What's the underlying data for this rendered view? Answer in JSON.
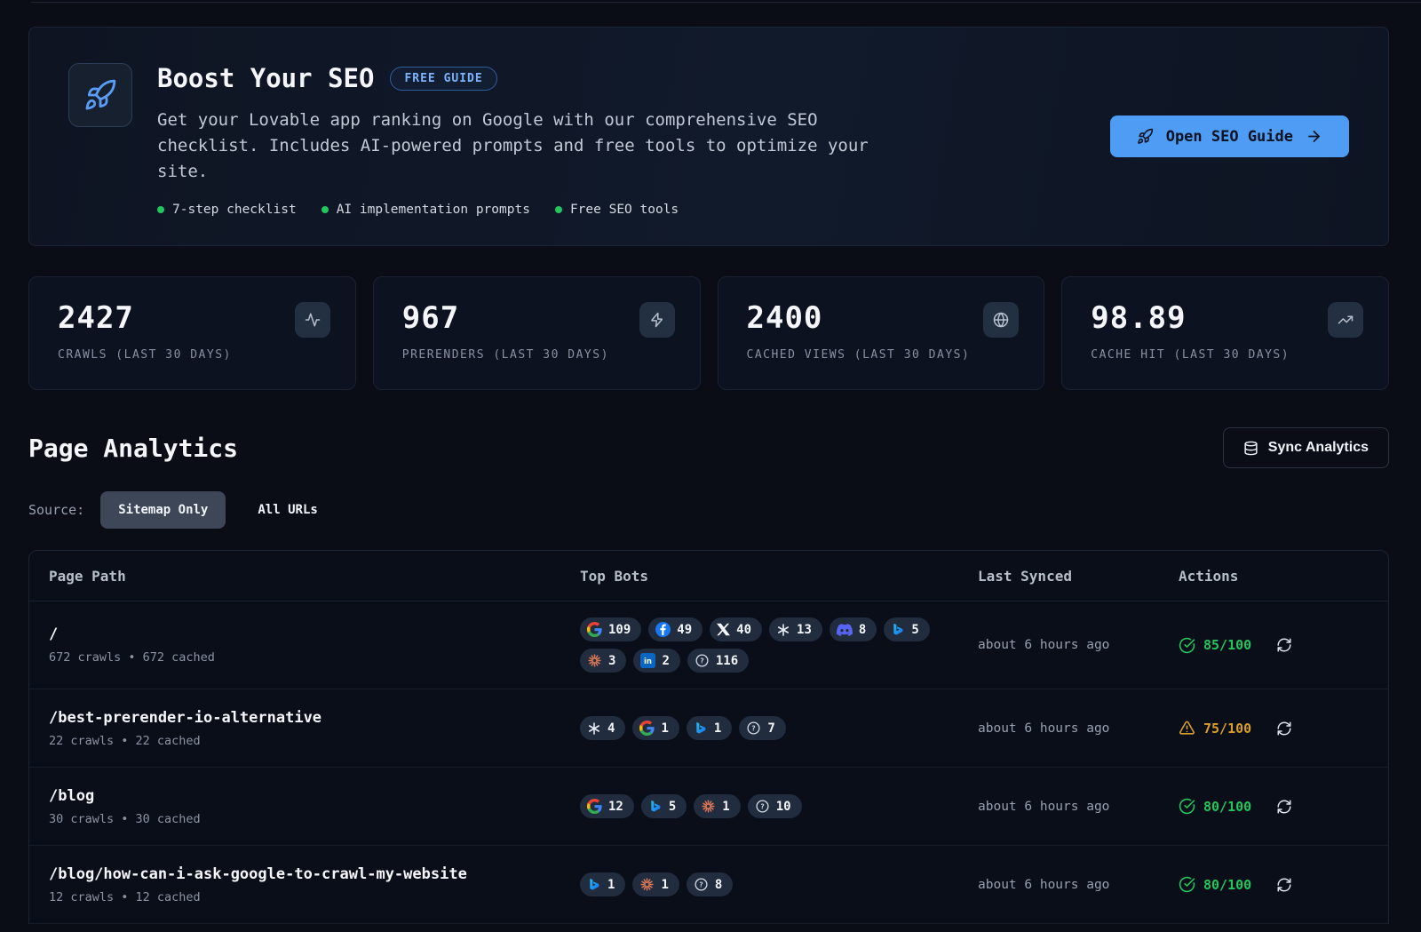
{
  "banner": {
    "title": "Boost Your SEO",
    "badge": "FREE GUIDE",
    "description": "Get your Lovable app ranking on Google with our comprehensive SEO checklist. Includes AI-powered prompts and free tools to optimize your site.",
    "features": [
      "7-step checklist",
      "AI implementation prompts",
      "Free SEO tools"
    ],
    "cta_label": "Open SEO Guide"
  },
  "stats": [
    {
      "value": "2427",
      "label": "CRAWLS (LAST 30 DAYS)",
      "icon": "activity-icon"
    },
    {
      "value": "967",
      "label": "PRERENDERS (LAST 30 DAYS)",
      "icon": "lightning-icon"
    },
    {
      "value": "2400",
      "label": "CACHED VIEWS (LAST 30 DAYS)",
      "icon": "globe-icon"
    },
    {
      "value": "98.89",
      "label": "CACHE HIT (LAST 30 DAYS)",
      "icon": "trending-up-icon"
    }
  ],
  "page_analytics": {
    "title": "Page Analytics",
    "sync_label": "Sync Analytics",
    "source_label": "Source:",
    "sources": [
      {
        "label": "Sitemap Only",
        "active": true
      },
      {
        "label": "All URLs",
        "active": false
      }
    ]
  },
  "table": {
    "columns": [
      "Page Path",
      "Top Bots",
      "Last Synced",
      "Actions"
    ],
    "rows": [
      {
        "path": "/",
        "meta": "672 crawls • 672 cached",
        "bots": [
          {
            "bot": "google",
            "count": "109"
          },
          {
            "bot": "facebook",
            "count": "49"
          },
          {
            "bot": "x",
            "count": "40"
          },
          {
            "bot": "openai",
            "count": "13"
          },
          {
            "bot": "discord",
            "count": "8"
          },
          {
            "bot": "bing",
            "count": "5"
          },
          {
            "bot": "claude",
            "count": "3"
          },
          {
            "bot": "linkedin",
            "count": "2"
          },
          {
            "bot": "unknown",
            "count": "116"
          }
        ],
        "last_synced": "about 6 hours ago",
        "score": "85/100",
        "score_status": "good"
      },
      {
        "path": "/best-prerender-io-alternative",
        "meta": "22 crawls • 22 cached",
        "bots": [
          {
            "bot": "openai",
            "count": "4"
          },
          {
            "bot": "google",
            "count": "1"
          },
          {
            "bot": "bing",
            "count": "1"
          },
          {
            "bot": "unknown",
            "count": "7"
          }
        ],
        "last_synced": "about 6 hours ago",
        "score": "75/100",
        "score_status": "warn"
      },
      {
        "path": "/blog",
        "meta": "30 crawls • 30 cached",
        "bots": [
          {
            "bot": "google",
            "count": "12"
          },
          {
            "bot": "bing",
            "count": "5"
          },
          {
            "bot": "claude",
            "count": "1"
          },
          {
            "bot": "unknown",
            "count": "10"
          }
        ],
        "last_synced": "about 6 hours ago",
        "score": "80/100",
        "score_status": "good"
      },
      {
        "path": "/blog/how-can-i-ask-google-to-crawl-my-website",
        "meta": "12 crawls • 12 cached",
        "bots": [
          {
            "bot": "bing",
            "count": "1"
          },
          {
            "bot": "claude",
            "count": "1"
          },
          {
            "bot": "unknown",
            "count": "8"
          }
        ],
        "last_synced": "about 6 hours ago",
        "score": "80/100",
        "score_status": "good"
      }
    ]
  },
  "colors": {
    "accent": "#4f9cf5",
    "good": "#22c55e",
    "warn": "#d99e2b",
    "feature_dot": "#22c55e"
  }
}
